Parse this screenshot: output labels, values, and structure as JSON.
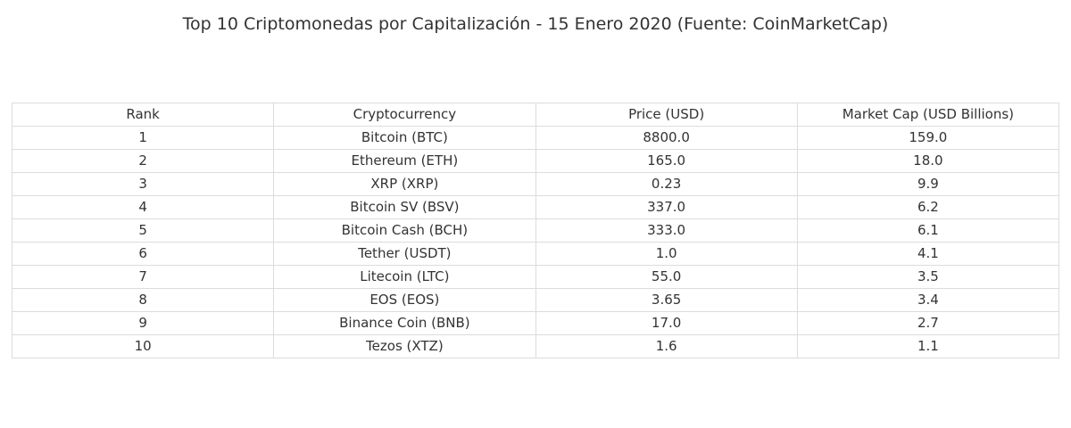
{
  "chart_data": {
    "type": "table",
    "title": "Top 10 Criptomonedas por Capitalización - 15 Enero 2020 (Fuente: CoinMarketCap)",
    "columns": [
      "Rank",
      "Cryptocurrency",
      "Price (USD)",
      "Market Cap (USD Billions)"
    ],
    "rows": [
      [
        "1",
        "Bitcoin (BTC)",
        "8800.0",
        "159.0"
      ],
      [
        "2",
        "Ethereum (ETH)",
        "165.0",
        "18.0"
      ],
      [
        "3",
        "XRP (XRP)",
        "0.23",
        "9.9"
      ],
      [
        "4",
        "Bitcoin SV (BSV)",
        "337.0",
        "6.2"
      ],
      [
        "5",
        "Bitcoin Cash (BCH)",
        "333.0",
        "6.1"
      ],
      [
        "6",
        "Tether (USDT)",
        "1.0",
        "4.1"
      ],
      [
        "7",
        "Litecoin (LTC)",
        "55.0",
        "3.5"
      ],
      [
        "8",
        "EOS (EOS)",
        "3.65",
        "3.4"
      ],
      [
        "9",
        "Binance Coin (BNB)",
        "17.0",
        "2.7"
      ],
      [
        "10",
        "Tezos (XTZ)",
        "1.6",
        "1.1"
      ]
    ],
    "colors": {
      "text": "#333333",
      "grid": "#dcdcdc",
      "background": "#ffffff"
    }
  }
}
